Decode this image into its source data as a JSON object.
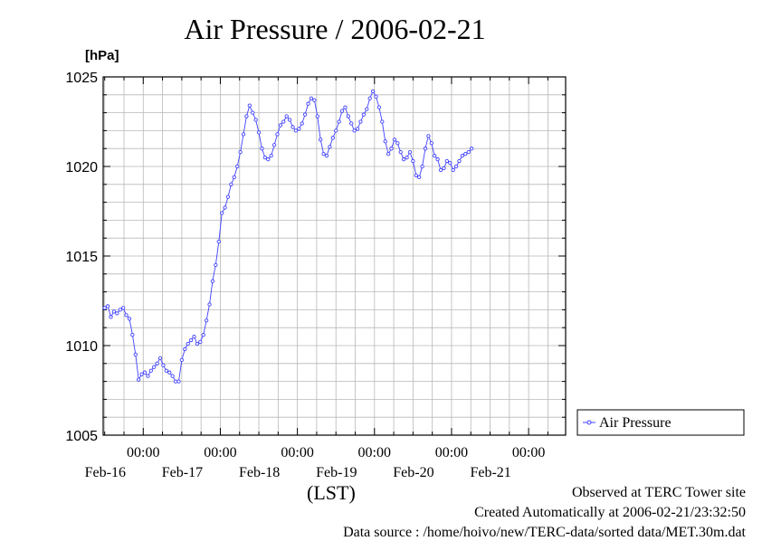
{
  "chart_data": {
    "type": "line",
    "title": "Air Pressure / 2006-02-21",
    "ylabel": "[hPa]",
    "xlabel": "(LST)",
    "ylim": [
      1005,
      1025
    ],
    "yticks": [
      1005,
      1010,
      1015,
      1020,
      1025
    ],
    "x_unit": "days since 2006-02-15 00:00 LST",
    "xlim": [
      0.98,
      6.98
    ],
    "xticks": [
      {
        "x": 1.5,
        "time": "00:00",
        "date": "Feb-16"
      },
      {
        "x": 2.5,
        "time": "00:00",
        "date": "Feb-17"
      },
      {
        "x": 3.5,
        "time": "00:00",
        "date": "Feb-18"
      },
      {
        "x": 4.5,
        "time": "00:00",
        "date": "Feb-19"
      },
      {
        "x": 5.5,
        "time": "00:00",
        "date": "Feb-20"
      },
      {
        "x": 6.5,
        "time": "00:00",
        "date": "Feb-21"
      }
    ],
    "grid": true,
    "legend_position": "right",
    "series": [
      {
        "name": "Air Pressure",
        "color": "#4040ff",
        "marker": "circle",
        "points": [
          [
            1.0,
            1012.1
          ],
          [
            1.04,
            1012.2
          ],
          [
            1.08,
            1011.6
          ],
          [
            1.12,
            1011.9
          ],
          [
            1.16,
            1011.8
          ],
          [
            1.2,
            1012.0
          ],
          [
            1.24,
            1012.1
          ],
          [
            1.28,
            1011.7
          ],
          [
            1.32,
            1011.5
          ],
          [
            1.36,
            1010.6
          ],
          [
            1.4,
            1009.5
          ],
          [
            1.44,
            1008.1
          ],
          [
            1.48,
            1008.4
          ],
          [
            1.52,
            1008.5
          ],
          [
            1.56,
            1008.3
          ],
          [
            1.6,
            1008.6
          ],
          [
            1.64,
            1008.8
          ],
          [
            1.68,
            1009.0
          ],
          [
            1.72,
            1009.3
          ],
          [
            1.76,
            1008.9
          ],
          [
            1.8,
            1008.6
          ],
          [
            1.84,
            1008.5
          ],
          [
            1.88,
            1008.3
          ],
          [
            1.92,
            1008.0
          ],
          [
            1.96,
            1008.0
          ],
          [
            2.0,
            1009.2
          ],
          [
            2.04,
            1009.8
          ],
          [
            2.08,
            1010.1
          ],
          [
            2.12,
            1010.3
          ],
          [
            2.16,
            1010.5
          ],
          [
            2.2,
            1010.1
          ],
          [
            2.24,
            1010.2
          ],
          [
            2.28,
            1010.6
          ],
          [
            2.32,
            1011.4
          ],
          [
            2.36,
            1012.3
          ],
          [
            2.4,
            1013.6
          ],
          [
            2.44,
            1014.5
          ],
          [
            2.48,
            1015.8
          ],
          [
            2.52,
            1017.4
          ],
          [
            2.56,
            1017.7
          ],
          [
            2.6,
            1018.3
          ],
          [
            2.64,
            1019.0
          ],
          [
            2.68,
            1019.4
          ],
          [
            2.72,
            1020.0
          ],
          [
            2.76,
            1020.8
          ],
          [
            2.8,
            1021.8
          ],
          [
            2.84,
            1022.8
          ],
          [
            2.88,
            1023.4
          ],
          [
            2.92,
            1023.0
          ],
          [
            2.96,
            1022.6
          ],
          [
            3.0,
            1021.9
          ],
          [
            3.04,
            1021.0
          ],
          [
            3.08,
            1020.5
          ],
          [
            3.12,
            1020.4
          ],
          [
            3.16,
            1020.6
          ],
          [
            3.2,
            1021.2
          ],
          [
            3.24,
            1021.8
          ],
          [
            3.28,
            1022.3
          ],
          [
            3.32,
            1022.5
          ],
          [
            3.36,
            1022.8
          ],
          [
            3.4,
            1022.6
          ],
          [
            3.44,
            1022.2
          ],
          [
            3.48,
            1022.0
          ],
          [
            3.52,
            1022.1
          ],
          [
            3.56,
            1022.4
          ],
          [
            3.6,
            1022.9
          ],
          [
            3.64,
            1023.5
          ],
          [
            3.68,
            1023.8
          ],
          [
            3.72,
            1023.7
          ],
          [
            3.76,
            1022.8
          ],
          [
            3.8,
            1021.5
          ],
          [
            3.84,
            1020.7
          ],
          [
            3.88,
            1020.6
          ],
          [
            3.92,
            1021.1
          ],
          [
            3.96,
            1021.6
          ],
          [
            4.0,
            1022.0
          ],
          [
            4.04,
            1022.5
          ],
          [
            4.08,
            1023.1
          ],
          [
            4.12,
            1023.3
          ],
          [
            4.16,
            1022.8
          ],
          [
            4.2,
            1022.4
          ],
          [
            4.24,
            1022.0
          ],
          [
            4.28,
            1022.1
          ],
          [
            4.32,
            1022.5
          ],
          [
            4.36,
            1022.9
          ],
          [
            4.4,
            1023.2
          ],
          [
            4.44,
            1023.8
          ],
          [
            4.48,
            1024.2
          ],
          [
            4.52,
            1023.9
          ],
          [
            4.56,
            1023.3
          ],
          [
            4.6,
            1022.5
          ],
          [
            4.64,
            1021.4
          ],
          [
            4.68,
            1020.7
          ],
          [
            4.72,
            1021.0
          ],
          [
            4.76,
            1021.5
          ],
          [
            4.8,
            1021.3
          ],
          [
            4.84,
            1020.8
          ],
          [
            4.88,
            1020.4
          ],
          [
            4.92,
            1020.5
          ],
          [
            4.96,
            1020.8
          ],
          [
            5.0,
            1020.3
          ],
          [
            5.04,
            1019.5
          ],
          [
            5.08,
            1019.4
          ],
          [
            5.12,
            1020.0
          ],
          [
            5.16,
            1021.0
          ],
          [
            5.2,
            1021.7
          ],
          [
            5.24,
            1021.3
          ],
          [
            5.28,
            1020.6
          ],
          [
            5.32,
            1020.4
          ],
          [
            5.36,
            1019.8
          ],
          [
            5.4,
            1019.9
          ],
          [
            5.44,
            1020.3
          ],
          [
            5.48,
            1020.2
          ],
          [
            5.52,
            1019.8
          ],
          [
            5.56,
            1020.0
          ],
          [
            5.6,
            1020.3
          ],
          [
            5.64,
            1020.6
          ],
          [
            5.68,
            1020.7
          ],
          [
            5.72,
            1020.8
          ],
          [
            5.76,
            1021.0
          ]
        ]
      }
    ]
  },
  "footer": {
    "observed": "Observed at TERC Tower site",
    "created": "Created Automatically at 2006-02-21/23:32:50",
    "source": "Data source : /home/hoivo/new/TERC-data/sorted  data/MET.30m.dat"
  }
}
